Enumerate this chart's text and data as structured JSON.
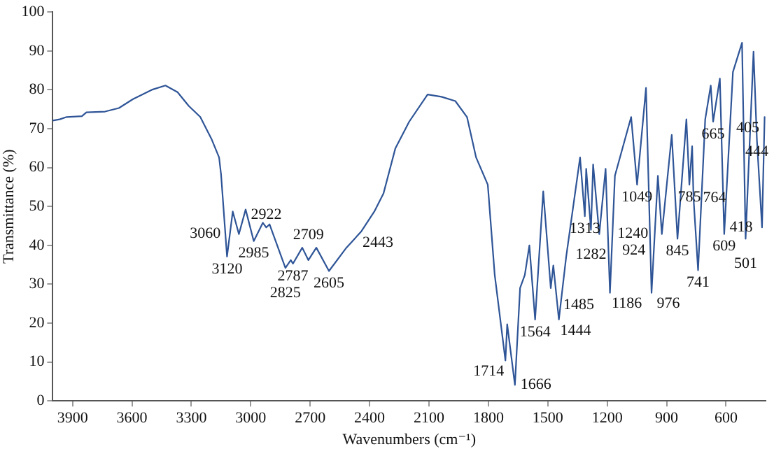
{
  "chart_data": {
    "type": "line",
    "xlabel": "Wavenumbers (cm⁻¹)",
    "ylabel": "Transmittance (%)",
    "xlim": [
      4000,
      400
    ],
    "xticks": [
      3900,
      3600,
      3300,
      3000,
      2700,
      2400,
      2100,
      1800,
      1500,
      1200,
      900,
      600
    ],
    "ylim": [
      0,
      100
    ],
    "yticks": [
      0,
      10,
      20,
      30,
      40,
      50,
      60,
      70,
      80,
      90,
      100
    ],
    "grid": false,
    "legend": false,
    "marker": "none",
    "line_style": "solid",
    "series": [
      {
        "color": "#2f5597",
        "x": [
          4000,
          3965,
          3930,
          3853,
          3830,
          3736,
          3666,
          3595,
          3500,
          3431,
          3370,
          3314,
          3255,
          3197,
          3160,
          3150,
          3120,
          3091,
          3060,
          3026,
          2985,
          2939,
          2922,
          2905,
          2825,
          2798,
          2787,
          2740,
          2709,
          2669,
          2605,
          2517,
          2443,
          2376,
          2330,
          2270,
          2200,
          2107,
          2037,
          1967,
          1908,
          1862,
          1803,
          1768,
          1714,
          1705,
          1666,
          1640,
          1616,
          1593,
          1564,
          1523,
          1485,
          1472,
          1444,
          1407,
          1337,
          1313,
          1306,
          1282,
          1271,
          1240,
          1208,
          1186,
          1161,
          1079,
          1049,
          1004,
          976,
          944,
          924,
          874,
          845,
          800,
          785,
          771,
          764,
          741,
          705,
          677,
          665,
          631,
          609,
          565,
          519,
          501,
          461,
          444,
          418,
          405
        ],
        "values": [
          72.1,
          72.4,
          73,
          73.2,
          74.2,
          74.4,
          75.3,
          77.6,
          80,
          81.1,
          79.4,
          75.9,
          73,
          67.2,
          62.6,
          58.2,
          37.1,
          48.7,
          42.9,
          49.2,
          41.1,
          45.8,
          44.6,
          45.4,
          34.2,
          36.2,
          35.3,
          39.4,
          36.2,
          39.4,
          33.4,
          39.4,
          43.5,
          48.7,
          53.3,
          64.9,
          71.8,
          78.8,
          78.2,
          77.1,
          73,
          62.6,
          55.6,
          32.4,
          10.4,
          19.7,
          4.1,
          29,
          32.4,
          40,
          20.9,
          53.9,
          29,
          34.8,
          20.9,
          37.1,
          62.6,
          47.5,
          59.7,
          44,
          60.8,
          42.9,
          59.7,
          27.8,
          57.9,
          73,
          55.6,
          80.5,
          27.8,
          57.9,
          42.9,
          68.4,
          41.7,
          72.4,
          55.6,
          65.5,
          52.1,
          33.6,
          72.4,
          81.1,
          71.8,
          82.9,
          42.9,
          84.6,
          92.1,
          41.7,
          89.8,
          67.2,
          44.6,
          73
        ]
      }
    ],
    "annotations": [
      {
        "text": "3120",
        "x": 3120,
        "y": 37.1
      },
      {
        "text": "3060",
        "x": 3060,
        "y": 42.9
      },
      {
        "text": "2985",
        "x": 2985,
        "y": 41.1
      },
      {
        "text": "2922",
        "x": 2922,
        "y": 44.6
      },
      {
        "text": "2787",
        "x": 2787,
        "y": 35.3
      },
      {
        "text": "2825",
        "x": 2825,
        "y": 34.2
      },
      {
        "text": "2709",
        "x": 2709,
        "y": 36.2
      },
      {
        "text": "2605",
        "x": 2605,
        "y": 33.4
      },
      {
        "text": "2443",
        "x": 2443,
        "y": 43.5
      },
      {
        "text": "1714",
        "x": 1714,
        "y": 10.4
      },
      {
        "text": "1666",
        "x": 1666,
        "y": 4.1
      },
      {
        "text": "1564",
        "x": 1564,
        "y": 20.9
      },
      {
        "text": "1444",
        "x": 1444,
        "y": 20.9
      },
      {
        "text": "1485",
        "x": 1485,
        "y": 29
      },
      {
        "text": "1313",
        "x": 1313,
        "y": 47.5
      },
      {
        "text": "1282",
        "x": 1282,
        "y": 44
      },
      {
        "text": "1240",
        "x": 1240,
        "y": 42.9
      },
      {
        "text": "1186",
        "x": 1186,
        "y": 27.8
      },
      {
        "text": "1049",
        "x": 1049,
        "y": 55.6
      },
      {
        "text": "976",
        "x": 976,
        "y": 27.8
      },
      {
        "text": "924",
        "x": 924,
        "y": 42.9
      },
      {
        "text": "845",
        "x": 845,
        "y": 41.7
      },
      {
        "text": "785",
        "x": 785,
        "y": 55.6
      },
      {
        "text": "764",
        "x": 764,
        "y": 52.1
      },
      {
        "text": "741",
        "x": 741,
        "y": 33.6
      },
      {
        "text": "665",
        "x": 665,
        "y": 71.8
      },
      {
        "text": "609",
        "x": 609,
        "y": 42.9
      },
      {
        "text": "501",
        "x": 501,
        "y": 41.7
      },
      {
        "text": "444",
        "x": 444,
        "y": 67.2
      },
      {
        "text": "405",
        "x": 405,
        "y": 73
      },
      {
        "text": "418",
        "x": 418,
        "y": 44.6
      }
    ]
  }
}
